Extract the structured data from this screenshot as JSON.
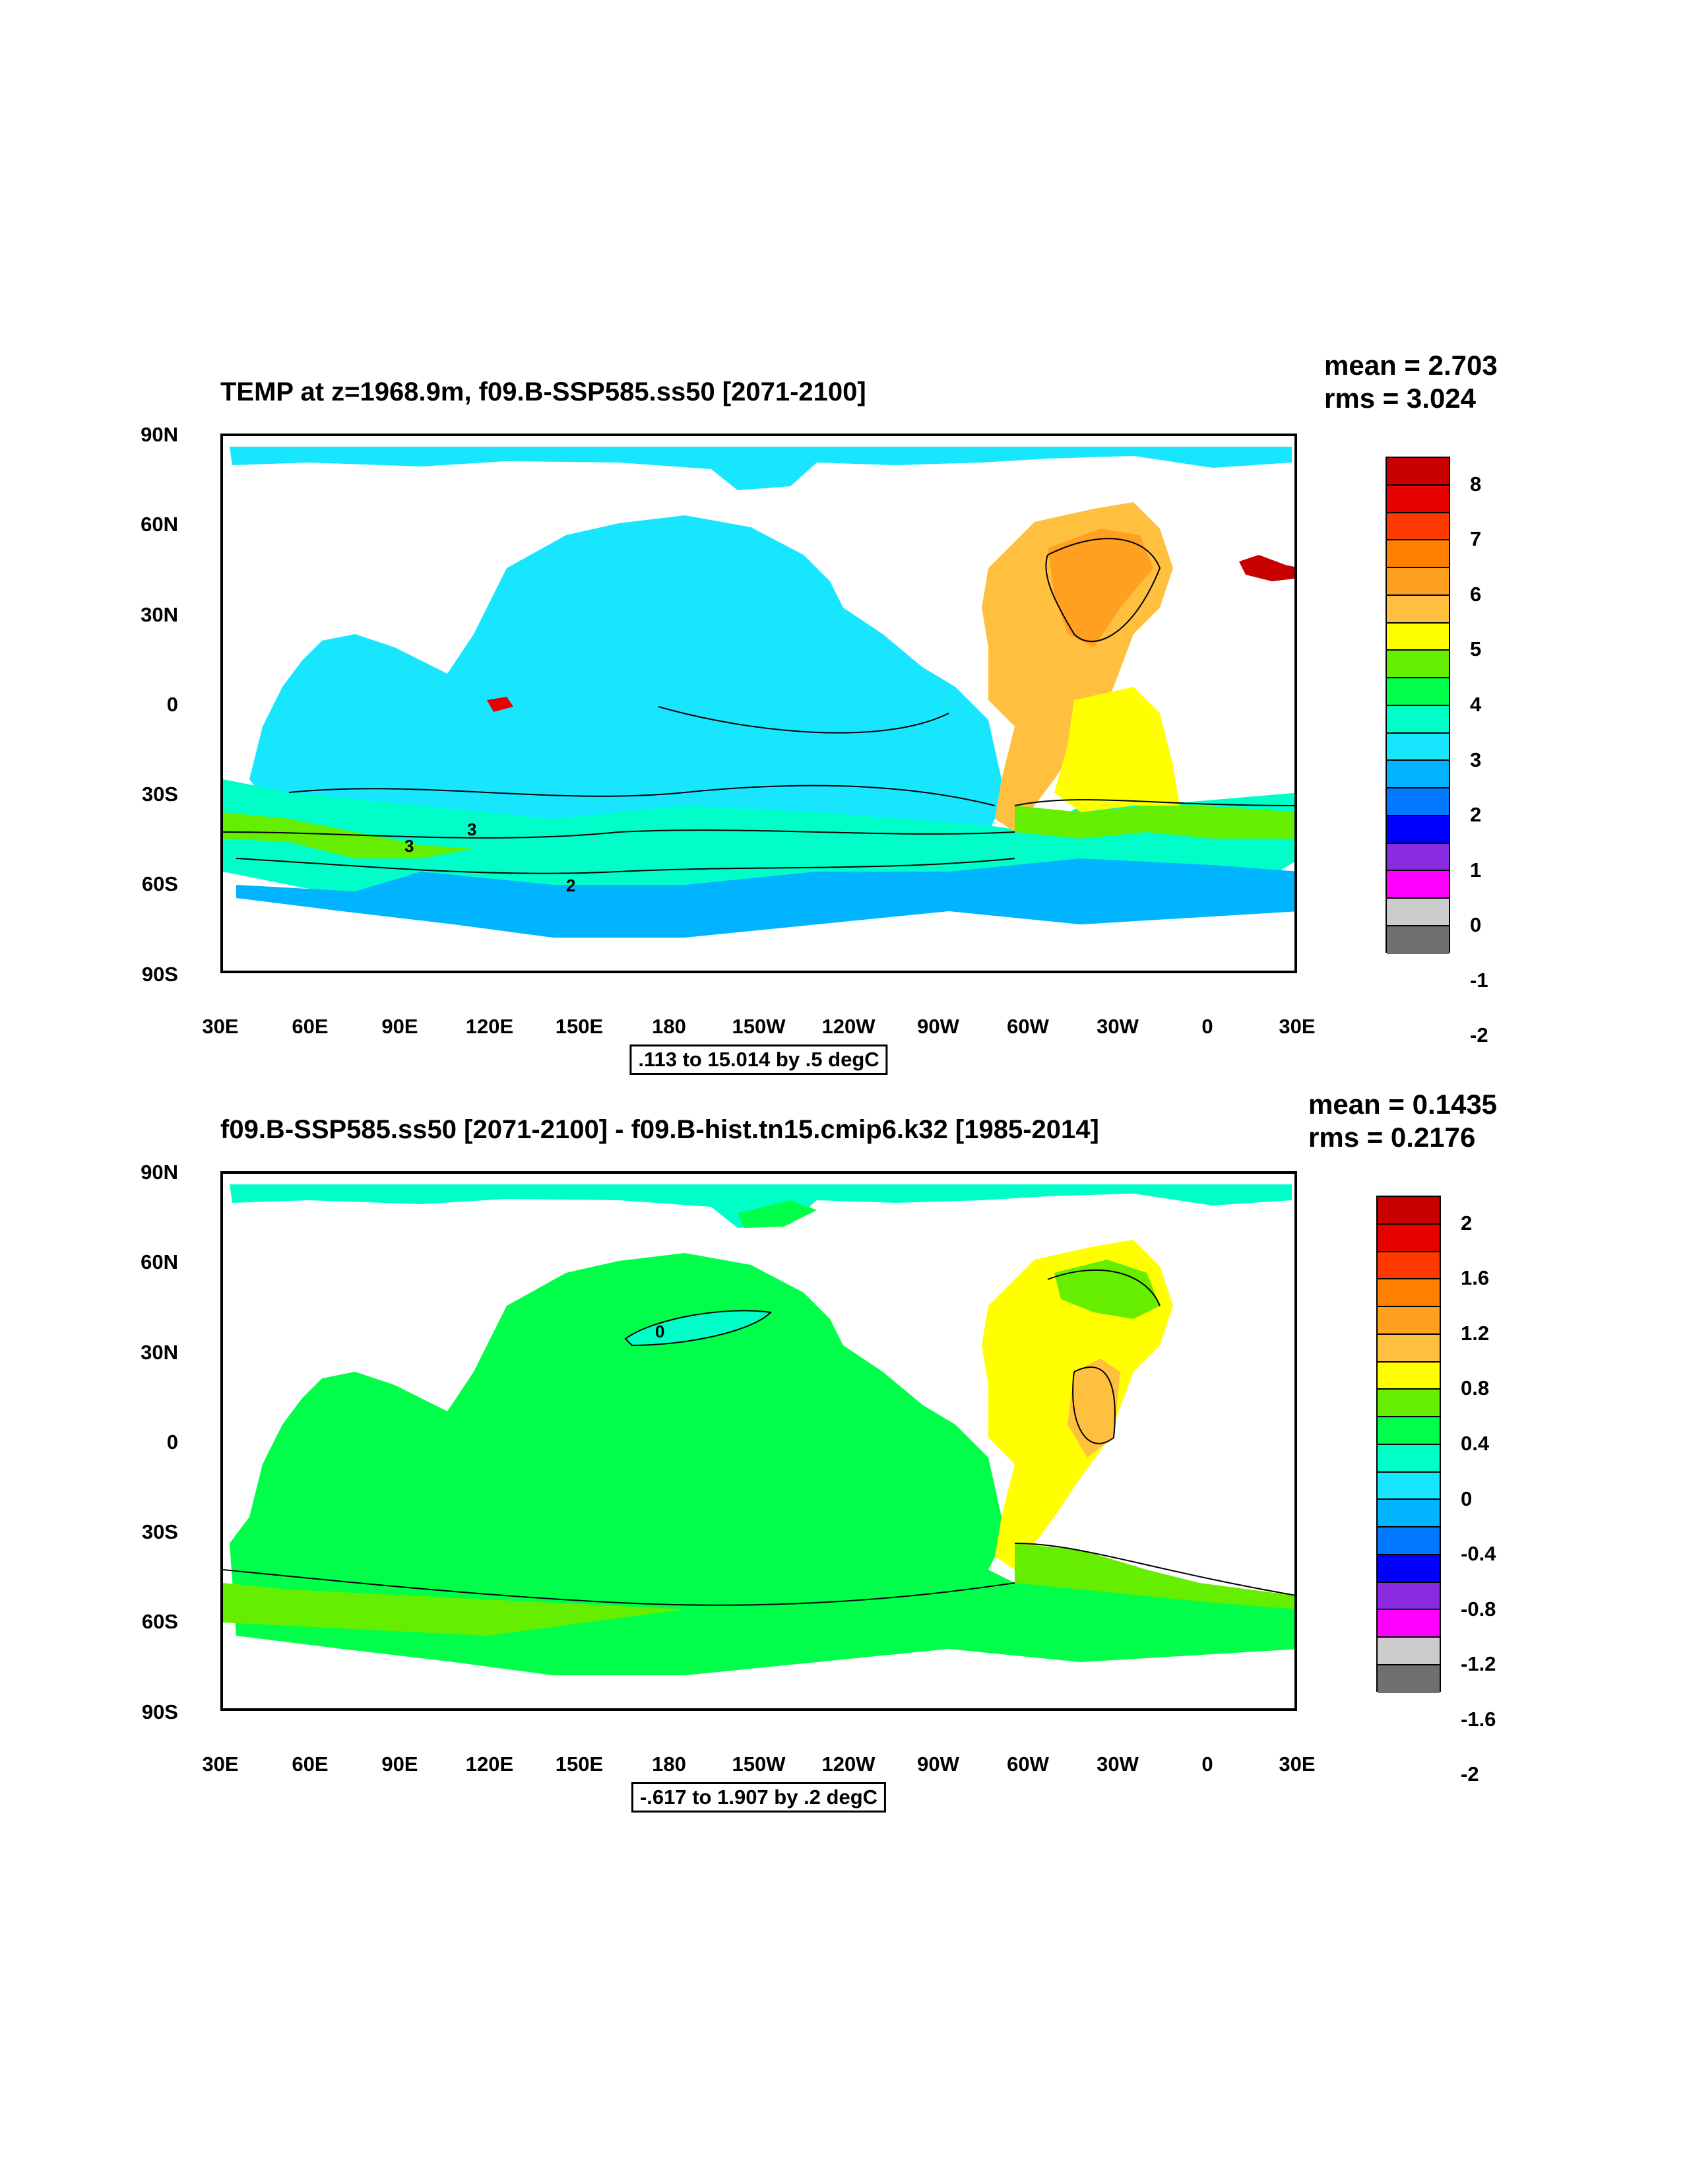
{
  "panels": [
    {
      "title": "TEMP at z=1968.9m, f09.B-SSP585.ss50 [2071-2100]",
      "mean": "mean = 2.703",
      "rms": "rms = 3.024",
      "range": ".113 to 15.014 by .5 degC",
      "ytick_labels": [
        "90N",
        "60N",
        "30N",
        "0",
        "30S",
        "60S",
        "90S"
      ],
      "xtick_labels": [
        "30E",
        "60E",
        "90E",
        "120E",
        "150E",
        "180",
        "150W",
        "120W",
        "90W",
        "60W",
        "30W",
        "0",
        "30E"
      ],
      "colorbar_labels": [
        "8",
        "7",
        "6",
        "5",
        "4",
        "3",
        "2",
        "1",
        "0",
        "-1",
        "-2"
      ],
      "contour_labels": [
        "3",
        "3",
        "2"
      ]
    },
    {
      "title": "f09.B-SSP585.ss50 [2071-2100] - f09.B-hist.tn15.cmip6.k32 [1985-2014]",
      "mean": "mean = 0.1435",
      "rms": "rms = 0.2176",
      "range": "-.617 to 1.907 by .2 degC",
      "ytick_labels": [
        "90N",
        "60N",
        "30N",
        "0",
        "30S",
        "60S",
        "90S"
      ],
      "xtick_labels": [
        "30E",
        "60E",
        "90E",
        "120E",
        "150E",
        "180",
        "150W",
        "120W",
        "90W",
        "60W",
        "30W",
        "0",
        "30E"
      ],
      "colorbar_labels": [
        "2",
        "1.6",
        "1.2",
        "0.8",
        "0.4",
        "0",
        "-0.4",
        "-0.8",
        "-1.2",
        "-1.6",
        "-2"
      ],
      "contour_labels": [
        "0"
      ]
    }
  ],
  "colorbar_colors": [
    "#c80000",
    "#e60000",
    "#ff3a00",
    "#ff7f00",
    "#ffa020",
    "#ffc040",
    "#ffff00",
    "#66ee00",
    "#00ff4a",
    "#00ffc8",
    "#18e6ff",
    "#00b4ff",
    "#0078ff",
    "#0000ff",
    "#8a2be2",
    "#ff00ff",
    "#cccccc",
    "#707070"
  ],
  "colors": {
    "land": "#ffffff",
    "panel1_arctic": "#18e6ff",
    "panel1_pacific": "#18e6ff",
    "panel1_southern": "#00ffc8",
    "panel1_antarctic": "#00b4ff",
    "panel1_atlantic": "#ffc040",
    "panel1_atlantic_core": "#ffa020",
    "panel1_south_atlantic": "#ffff00",
    "panel1_acc_band": "#66ee00",
    "panel2_ocean": "#00ff4a",
    "panel2_arctic": "#00ffc8",
    "panel2_atlantic": "#ffff00",
    "panel2_atlantic_core": "#ffc040",
    "panel2_southern_band": "#66ee00",
    "panel2_pacific_patch": "#00ffc8"
  }
}
